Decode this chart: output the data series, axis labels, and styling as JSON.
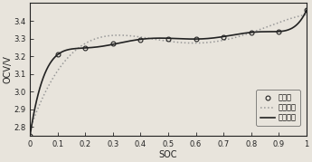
{
  "title": "",
  "xlabel": "SOC",
  "ylabel": "OCV/V",
  "xlim": [
    0,
    1.0
  ],
  "ylim": [
    2.75,
    3.5
  ],
  "yticks": [
    2.8,
    2.9,
    3.0,
    3.1,
    3.2,
    3.3,
    3.4
  ],
  "xticks": [
    0,
    0.1,
    0.2,
    0.3,
    0.4,
    0.5,
    0.6,
    0.7,
    0.8,
    0.9,
    1.0
  ],
  "xtick_labels": [
    "0",
    "0.1",
    "0.2",
    "0.3",
    "0.4",
    "0.5",
    "0.6",
    "0.7",
    "0.8",
    "0.9",
    "1"
  ],
  "exp_soc": [
    0.0,
    0.1,
    0.2,
    0.3,
    0.4,
    0.5,
    0.6,
    0.7,
    0.8,
    0.9,
    1.0
  ],
  "exp_ocv": [
    2.75,
    3.21,
    3.245,
    3.27,
    3.295,
    3.3,
    3.3,
    3.31,
    3.335,
    3.34,
    3.46
  ],
  "legend_labels": [
    "实验值",
    "四次曲线",
    "七次曲线"
  ],
  "line_color_7th": "#222222",
  "line_color_4th": "#999999",
  "bg_color": "#e8e4dc",
  "axes_bg": "#e8e4dc",
  "spine_color": "#222222",
  "tick_color": "#222222"
}
